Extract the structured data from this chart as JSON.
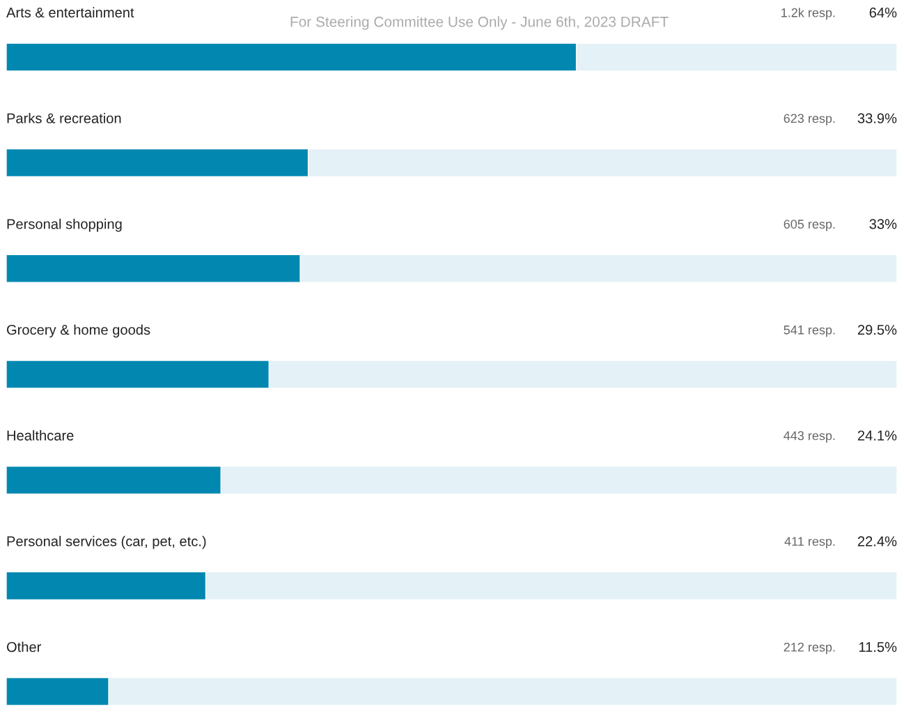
{
  "chart_data": {
    "type": "bar",
    "orientation": "horizontal",
    "categories": [
      "Arts & entertainment",
      "Parks & recreation",
      "Personal shopping",
      "Grocery & home goods",
      "Healthcare",
      "Personal services (car, pet, etc.)",
      "Other"
    ],
    "values": [
      64,
      33.9,
      33,
      29.5,
      24.1,
      22.4,
      11.5
    ],
    "value_labels": [
      "64%",
      "33.9%",
      "33%",
      "29.5%",
      "24.1%",
      "22.4%",
      "11.5%"
    ],
    "color": "#0288b0",
    "xlim": [
      0,
      100
    ],
    "annotations": [
      "For Steering Committee Use Only - June 6th, 2023 DRAFT",
      "1.2k resp.",
      "623 resp.",
      "605 resp.",
      "541 resp.",
      "443 resp.",
      "411 resp.",
      "212 resp."
    ]
  }
}
